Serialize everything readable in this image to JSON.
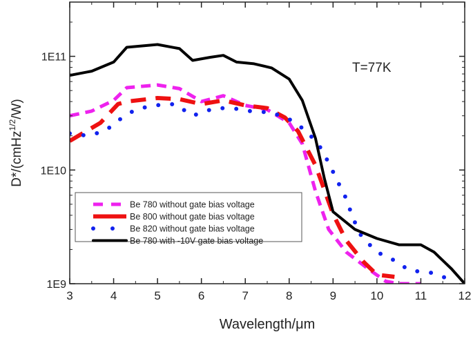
{
  "chart_data": {
    "type": "line",
    "title": "",
    "xlabel": "Wavelength/μm",
    "ylabel_main": "D*/(cmHz",
    "ylabel_sup": "1/2",
    "ylabel_tail": "/W)",
    "annotation": "T=77K",
    "xlim": [
      3,
      12
    ],
    "ylim": [
      1000000000.0,
      300000000000.0
    ],
    "y_scale": "log",
    "x_ticks": [
      3,
      4,
      5,
      6,
      7,
      8,
      9,
      10,
      11,
      12
    ],
    "x_tick_labels": [
      "3",
      "4",
      "5",
      "6",
      "7",
      "8",
      "9",
      "10",
      "11",
      "12"
    ],
    "y_ticks": [
      1000000000.0,
      10000000000.0,
      100000000000.0
    ],
    "y_tick_labels": [
      "1E9",
      "1E10",
      "1E11"
    ],
    "grid": false,
    "legend_position": "lower-left",
    "series": [
      {
        "name": "Be 780 without gate bias voltage",
        "color": "#ee22ee",
        "style": "dashed",
        "x": [
          3,
          3.5,
          4,
          4.3,
          5,
          5.5,
          6,
          6.5,
          7,
          7.5,
          8,
          8.3,
          8.6,
          8.9,
          9.3,
          9.8,
          10.2,
          10.5,
          11
        ],
        "y": [
          30000000000.0,
          33000000000.0,
          41000000000.0,
          53000000000.0,
          56000000000.0,
          52000000000.0,
          40000000000.0,
          45000000000.0,
          37000000000.0,
          34000000000.0,
          26000000000.0,
          17000000000.0,
          6500000000.0,
          3000000000.0,
          1900000000.0,
          1350000000.0,
          1050000000.0,
          1000000000.0,
          1000000000.0
        ]
      },
      {
        "name": "Be 800 without gate bias voltage",
        "color": "#ee1111",
        "style": "long-dashed",
        "x": [
          3,
          3.7,
          4.1,
          4.3,
          5,
          5.5,
          6,
          6.5,
          7,
          7.5,
          7.9,
          8.2,
          8.6,
          9,
          9.3,
          9.7,
          10,
          10.4
        ],
        "y": [
          18000000000.0,
          26000000000.0,
          38000000000.0,
          40000000000.0,
          43000000000.0,
          42000000000.0,
          38000000000.0,
          41000000000.0,
          37000000000.0,
          35000000000.0,
          29000000000.0,
          22000000000.0,
          11000000000.0,
          4100000000.0,
          2400000000.0,
          1550000000.0,
          1200000000.0,
          1150000000.0
        ]
      },
      {
        "name": "Be 820 without gate bias voltage",
        "color": "#1122ee",
        "style": "dotted",
        "x": [
          3,
          3.4,
          3.8,
          4.2,
          4.5,
          4.9,
          5.4,
          5.8,
          6.3,
          6.7,
          7.1,
          7.6,
          8,
          8.4,
          8.7,
          8.9,
          9.1,
          9.3,
          9.45,
          9.65,
          10,
          10.4,
          10.75,
          11.2,
          11.65
        ],
        "y": [
          21000000000.0,
          20000000000.0,
          22000000000.0,
          29000000000.0,
          34000000000.0,
          37000000000.0,
          38000000000.0,
          30000000000.0,
          35000000000.0,
          35000000000.0,
          33000000000.0,
          32000000000.0,
          28000000000.0,
          22000000000.0,
          16000000000.0,
          11600000000.0,
          8000000000.0,
          5600000000.0,
          3800000000.0,
          2600000000.0,
          1900000000.0,
          1600000000.0,
          1300000000.0,
          1260000000.0,
          1100000000.0
        ]
      },
      {
        "name": "Be 780 with -10V gate bias voltage",
        "color": "#000000",
        "style": "solid",
        "x": [
          3,
          3.5,
          4,
          4.3,
          5,
          5.5,
          5.8,
          6.2,
          6.5,
          6.8,
          7.2,
          7.6,
          8,
          8.3,
          8.6,
          8.8,
          9,
          9.5,
          10,
          10.5,
          11,
          11.3,
          11.7,
          12
        ],
        "y": [
          68000000000.0,
          74000000000.0,
          89000000000.0,
          120000000000.0,
          127000000000.0,
          117000000000.0,
          92000000000.0,
          98000000000.0,
          102000000000.0,
          89000000000.0,
          86000000000.0,
          79000000000.0,
          63000000000.0,
          41000000000.0,
          19000000000.0,
          8500000000.0,
          4300000000.0,
          3000000000.0,
          2500000000.0,
          2200000000.0,
          2200000000.0,
          1900000000.0,
          1350000000.0,
          1000000000.0
        ]
      }
    ]
  }
}
